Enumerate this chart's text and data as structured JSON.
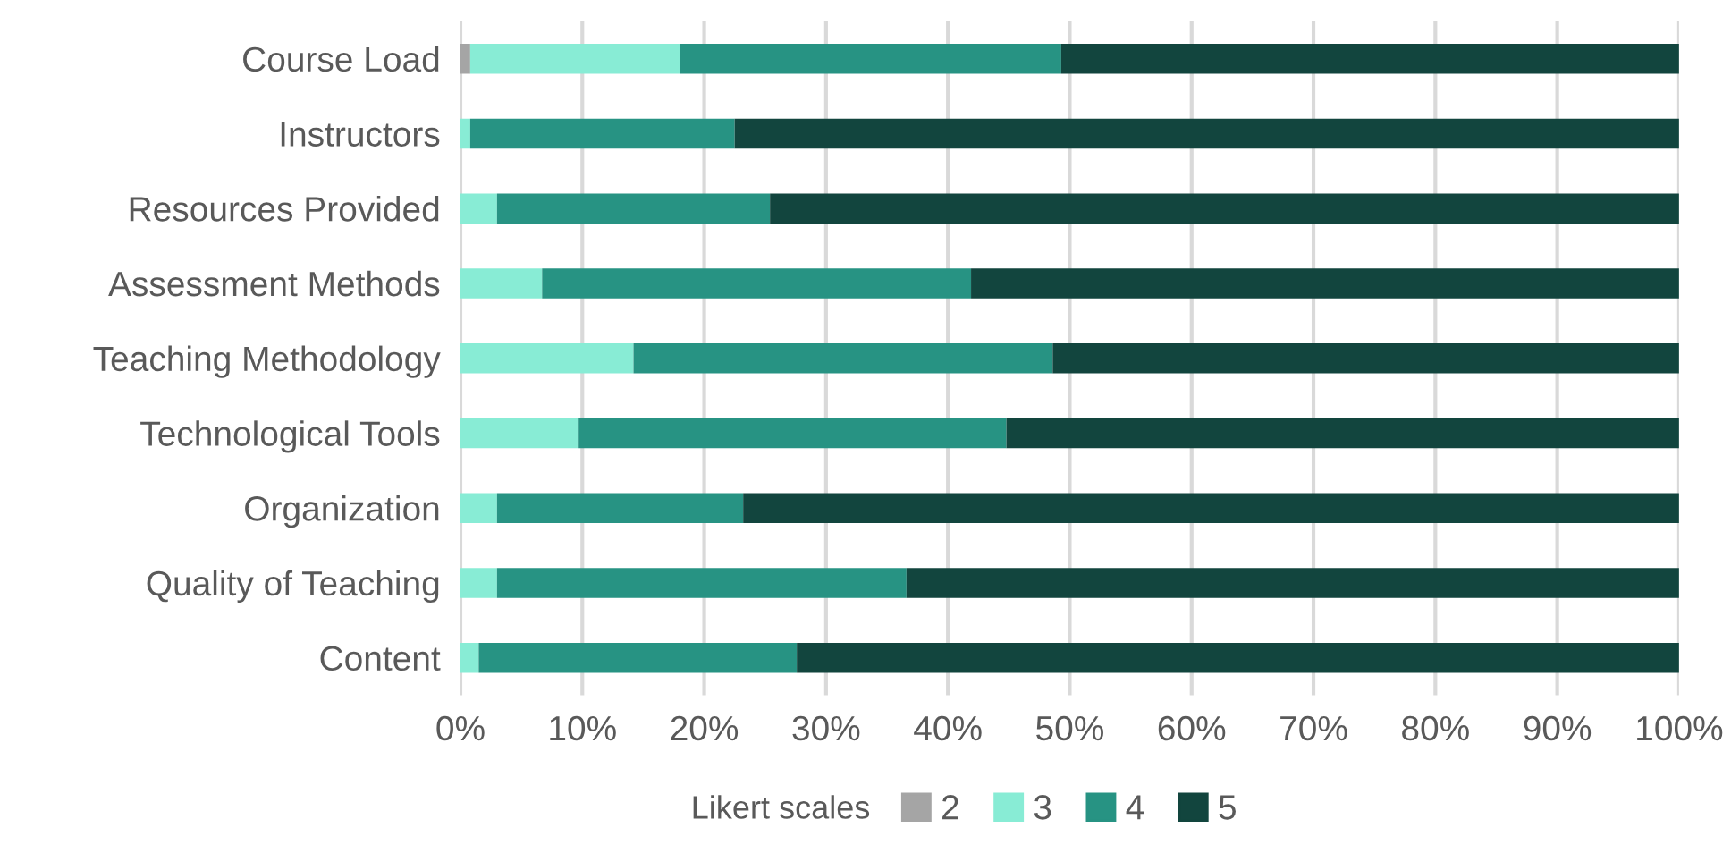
{
  "chart_data": {
    "type": "bar",
    "orientation": "horizontal",
    "stacked": true,
    "categories": [
      "Course Load",
      "Instructors",
      "Resources Provided",
      "Assessment Methods",
      "Teaching Methodology",
      "Technological Tools",
      "Organization",
      "Quality of Teaching",
      "Content"
    ],
    "series": [
      {
        "name": "2",
        "color": "#a5a5a5",
        "values": [
          0.8,
          0,
          0,
          0,
          0,
          0,
          0,
          0,
          0
        ]
      },
      {
        "name": "3",
        "color": "#88ecd5",
        "values": [
          17.2,
          0.8,
          3.0,
          6.7,
          14.2,
          9.7,
          3.0,
          3.0,
          1.5
        ]
      },
      {
        "name": "4",
        "color": "#279383",
        "values": [
          31.3,
          21.7,
          22.4,
          35.2,
          34.4,
          35.1,
          20.2,
          33.6,
          26.1
        ]
      },
      {
        "name": "5",
        "color": "#12453e",
        "values": [
          50.7,
          77.5,
          74.6,
          58.1,
          51.4,
          55.2,
          76.8,
          63.4,
          72.4
        ]
      }
    ],
    "legend_title": "Likert scales",
    "legend": "bottom",
    "grid": "x",
    "xlim": [
      0,
      100
    ],
    "xticks": [
      {
        "value": 0,
        "label": "0%"
      },
      {
        "value": 10,
        "label": "10%"
      },
      {
        "value": 20,
        "label": "20%"
      },
      {
        "value": 30,
        "label": "30%"
      },
      {
        "value": 40,
        "label": "40%"
      },
      {
        "value": 50,
        "label": "50%"
      },
      {
        "value": 60,
        "label": "60%"
      },
      {
        "value": 70,
        "label": "70%"
      },
      {
        "value": 80,
        "label": "80%"
      },
      {
        "value": 90,
        "label": "90%"
      },
      {
        "value": 100,
        "label": "100%"
      }
    ]
  }
}
